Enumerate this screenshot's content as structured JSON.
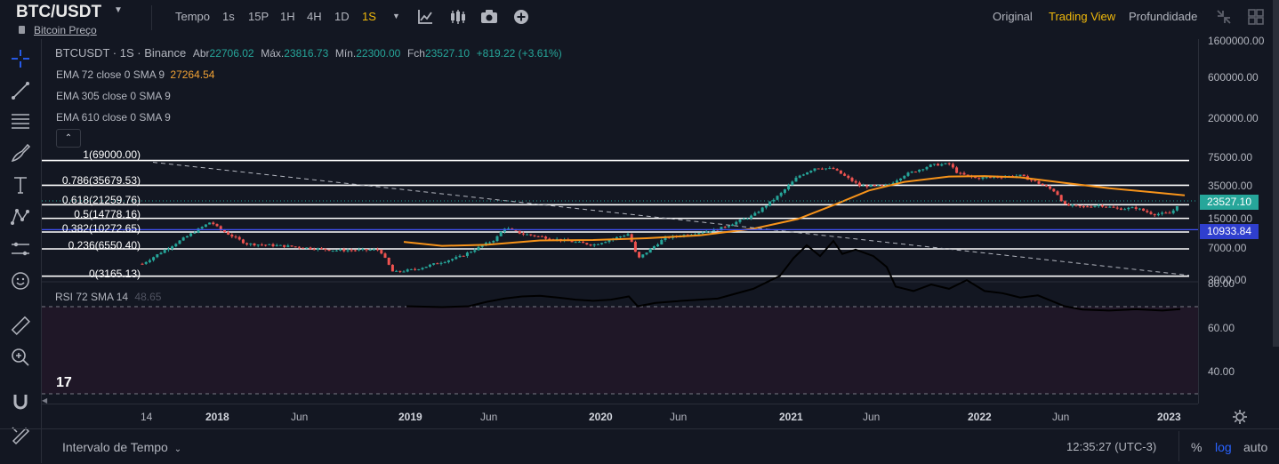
{
  "header": {
    "symbol": "BTC/USDT",
    "subtitle": "Bitcoin Preço",
    "time_label": "Tempo",
    "intervals": [
      "1s",
      "15P",
      "1H",
      "4H",
      "1D",
      "1S"
    ],
    "active_interval": "1S",
    "views": [
      "Original",
      "Trading View",
      "Profundidade"
    ],
    "active_view": "Trading View",
    "icons": [
      "chevron-down-icon",
      "indicator-icon",
      "candle-type-icon",
      "camera-icon",
      "add-icon",
      "fullscreen-icon",
      "grid-icon"
    ]
  },
  "legend": {
    "symbol": "BTCUSDT",
    "interval": "1S",
    "exchange": "Binance",
    "open_label": "Abr",
    "open": "22706.02",
    "high_label": "Máx.",
    "high": "23816.73",
    "low_label": "Mín.",
    "low": "22300.00",
    "close_label": "Fch",
    "close": "23527.10",
    "change": "+819.22 (+3.61%)",
    "ema1_label": "EMA 72 close 0 SMA 9",
    "ema1_value": "27264.54",
    "ema2_label": "EMA 305 close 0 SMA 9",
    "ema3_label": "EMA 610 close 0 SMA 9",
    "collapse": "⌃"
  },
  "fibonacci": [
    {
      "label": "1(69000.00)"
    },
    {
      "label": "0.786(35679.53)"
    },
    {
      "label": "0.618(21259.76)"
    },
    {
      "label": "0.5(14778.16)"
    },
    {
      "label": "0.382(10272.65)"
    },
    {
      "label": "0.236(6550.40)"
    },
    {
      "label": "0(3165.13)"
    }
  ],
  "price_axis": {
    "ticks": [
      "1600000.00",
      "600000.00",
      "200000.00",
      "75000.00",
      "35000.00",
      "15000.00",
      "7000.00",
      "3000.00"
    ],
    "last_price": "23527.10",
    "crosshair_price": "10933.84",
    "scale": "log"
  },
  "rsi": {
    "label": "RSI 72 SMA 14",
    "value": "48.65",
    "ticks": [
      "80.00",
      "60.00",
      "40.00"
    ]
  },
  "time_axis": {
    "ticks": [
      "14",
      "2018",
      "Jun",
      "2019",
      "Jun",
      "2020",
      "Jun",
      "2021",
      "Jun",
      "2022",
      "Jun",
      "2023"
    ]
  },
  "colors": {
    "background": "#131722",
    "accent": "#f0b90b",
    "up": "#26a69a",
    "down": "#ef5350",
    "ema": "#f7931a",
    "crosshair": "#3f51f5",
    "rsi_band": "#1f1727"
  },
  "bottom": {
    "interval_label": "Intervalo de Tempo",
    "clock": "12:35:27 (UTC-3)",
    "options": [
      "%",
      "log",
      "auto"
    ],
    "active_option": "log"
  }
}
